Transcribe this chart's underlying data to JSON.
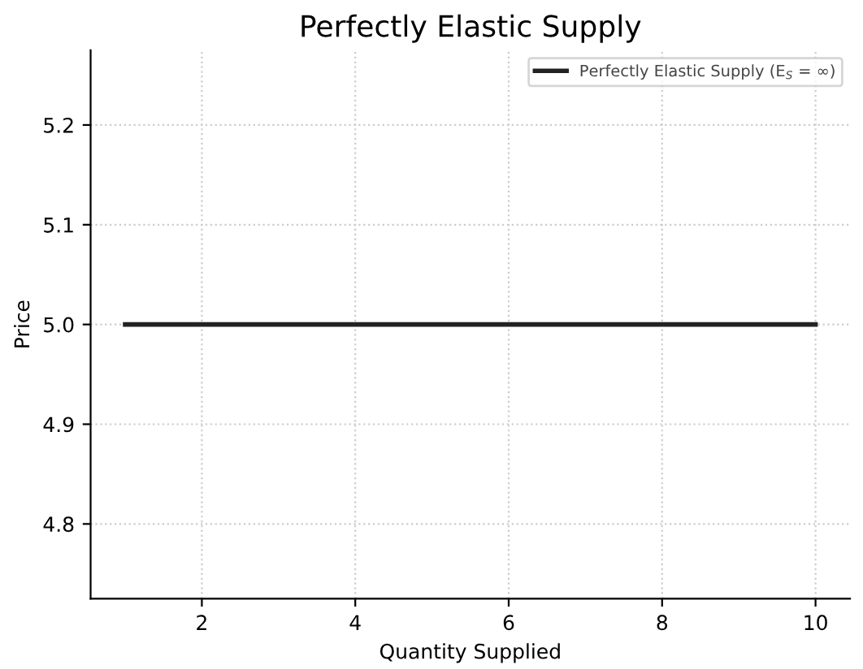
{
  "chart_data": {
    "type": "line",
    "title": "Perfectly Elastic Supply",
    "xlabel": "Quantity Supplied",
    "ylabel": "Price",
    "x": [
      1,
      10
    ],
    "series": [
      {
        "name": "Perfectly Elastic Supply (E$_{S}$ = ∞)",
        "color": "#222222",
        "values": [
          5.0,
          5.0
        ]
      }
    ],
    "xlim": [
      0.55,
      10.45
    ],
    "ylim": [
      4.725,
      5.275
    ],
    "xticks": [
      2,
      4,
      6,
      8,
      10
    ],
    "yticks": [
      4.8,
      4.9,
      {
        "value": 5,
        "label": "5.0"
      },
      5.1,
      5.2
    ],
    "grid": true,
    "legend": "top right",
    "marker": "none",
    "line_style": "solid"
  }
}
